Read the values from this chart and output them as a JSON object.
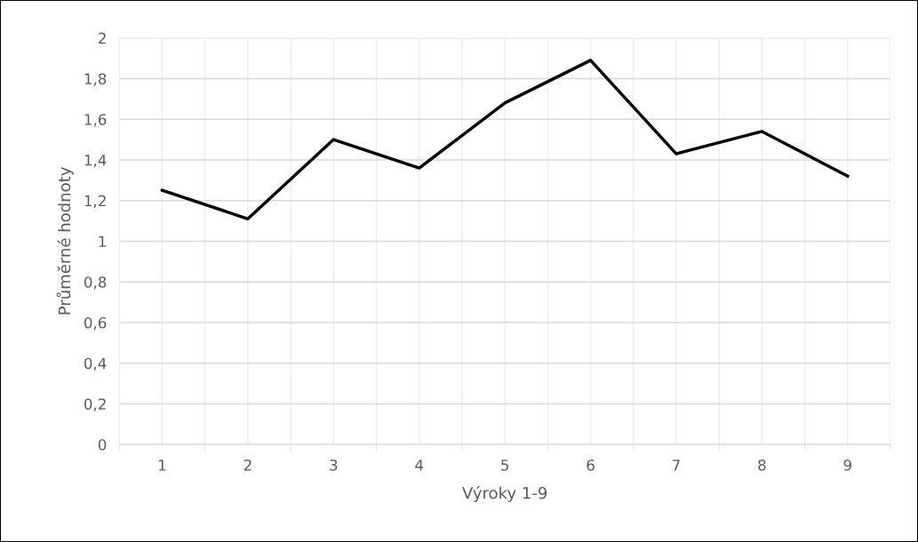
{
  "chart_data": {
    "type": "line",
    "xlabel": "Výroky 1-9",
    "ylabel": "Průměrné hodnoty",
    "categories": [
      "1",
      "2",
      "3",
      "4",
      "5",
      "6",
      "7",
      "8",
      "9"
    ],
    "series": [
      {
        "color": "#000000",
        "values": [
          1.25,
          1.11,
          1.5,
          1.36,
          1.68,
          1.89,
          1.43,
          1.54,
          1.32
        ]
      }
    ],
    "ylim": [
      0,
      2
    ],
    "yticks": [
      0,
      {
        "value": 0.2,
        "label": "0,2"
      },
      {
        "value": 0.4,
        "label": "0,4"
      },
      {
        "value": 0.6,
        "label": "0,6"
      },
      {
        "value": 0.8,
        "label": "0,8"
      },
      1,
      {
        "value": 1.2,
        "label": "1,2"
      },
      {
        "value": 1.4,
        "label": "1,4"
      },
      {
        "value": 1.6,
        "label": "1,6"
      },
      {
        "value": 1.8,
        "label": "1,8"
      },
      2
    ],
    "grid": true,
    "marker": "none",
    "line_style": "solid"
  }
}
